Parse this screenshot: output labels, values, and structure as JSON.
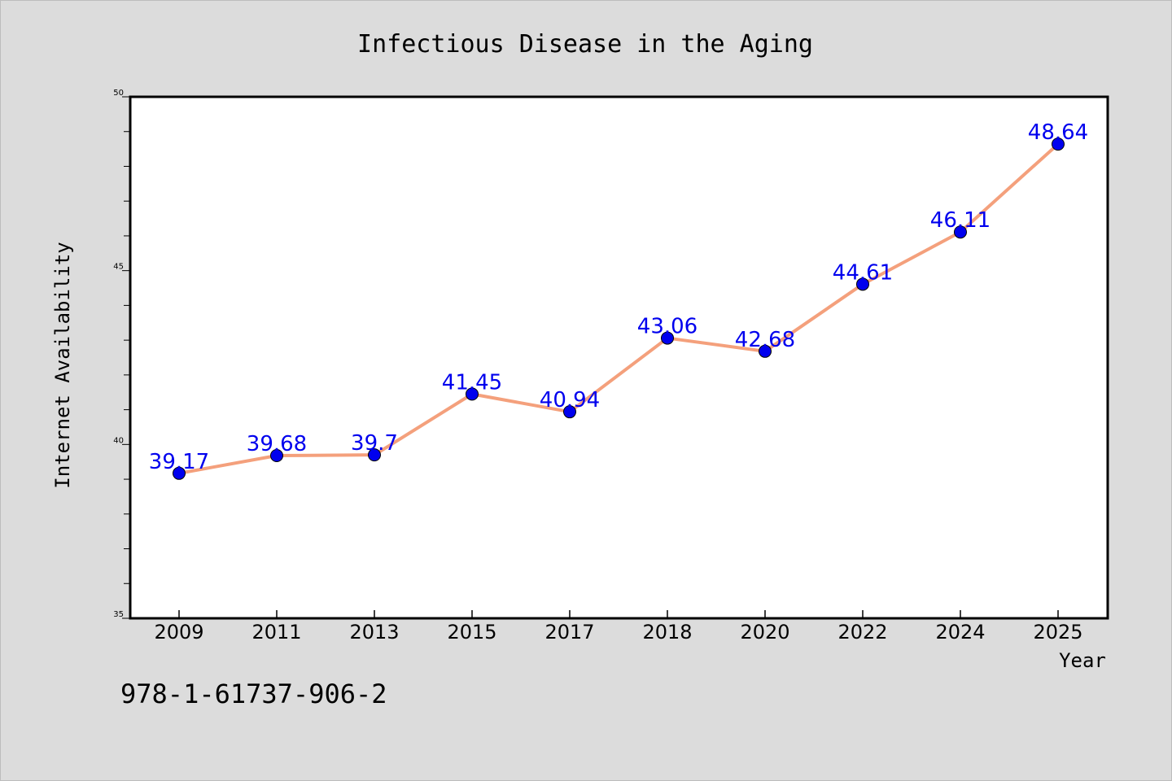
{
  "chart_data": {
    "type": "line",
    "title": "Infectious Disease in the Aging",
    "xlabel": "Year",
    "ylabel": "Internet Availability",
    "categories": [
      "2009",
      "2011",
      "2013",
      "2015",
      "2017",
      "2018",
      "2020",
      "2022",
      "2024",
      "2025"
    ],
    "series": [
      {
        "values": [
          39.17,
          39.68,
          39.7,
          41.45,
          40.94,
          43.06,
          42.68,
          44.61,
          46.11,
          48.64
        ],
        "labels": [
          "39.17",
          "39.68",
          "39.7",
          "41.45",
          "40.94",
          "43.06",
          "42.68",
          "44.61",
          "46.11",
          "48.64"
        ]
      }
    ],
    "ylim": [
      35,
      50
    ],
    "yticks": [
      "35",
      "40",
      "45",
      "50"
    ],
    "yminor_step": 1,
    "grid": false,
    "legend": "none",
    "colors": {
      "line": "#f4a07c",
      "marker": "#0000ee",
      "data_label": "#0000ee",
      "background": "#dcdcdc",
      "plot_area": "#ffffff"
    }
  },
  "footnote": "978-1-61737-906-2"
}
